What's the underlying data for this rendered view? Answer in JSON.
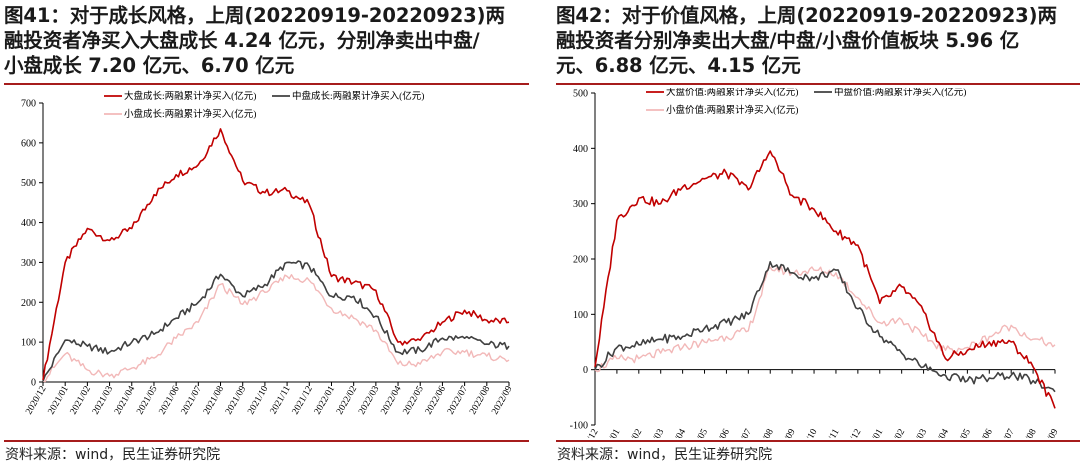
{
  "panels": [
    {
      "title": "图41：对于成长风格，上周(20220919-20220923)两融投资者净买入大盘成长 4.24 亿元，分别净卖出中盘/小盘成长 7.20 亿元、6.70 亿元",
      "title_lines": [
        "图41：对于成长风格，上周(20220919-20220923)两",
        "融投资者净买入大盘成长 4.24 亿元，分别净卖出中盘/",
        "小盘成长 7.20 亿元、6.70 亿元"
      ],
      "source": "资料来源：wind，民生证券研究院"
    },
    {
      "title": "图42：对于价值风格，上周(20220919-20220923)两融投资者分别净卖出大盘/中盘/小盘价值板块 5.96 亿元、6.88 亿元、4.15 亿元",
      "title_lines": [
        "图42：对于价值风格，上周(20220919-20220923)两",
        "融投资者分别净卖出大盘/中盘/小盘价值板块  5.96  亿",
        "元、6.88 亿元、4.15 亿元"
      ],
      "source": "资料来源：wind，民生证券研究院"
    }
  ],
  "colors": {
    "large": "#c00000",
    "mid": "#404040",
    "small": "#f2b8b8",
    "rule": "#a61c1c"
  },
  "chart_data": [
    {
      "type": "line",
      "title": "",
      "xlabel": "",
      "ylabel": "",
      "ylim": [
        0,
        700
      ],
      "yticks": [
        0,
        100,
        200,
        300,
        400,
        500,
        600,
        700
      ],
      "xticks": [
        "2020/12",
        "2021/01",
        "2021/02",
        "2021/03",
        "2021/04",
        "2021/05",
        "2021/06",
        "2021/07",
        "2021/08",
        "2021/09",
        "2021/10",
        "2021/11",
        "2021/12",
        "2022/01",
        "2022/02",
        "2022/03",
        "2022/04",
        "2022/05",
        "2022/06",
        "2022/07",
        "2022/08",
        "2022/09"
      ],
      "x": [
        "2020/12",
        "2021/01",
        "2021/02",
        "2021/03",
        "2021/04",
        "2021/05",
        "2021/06",
        "2021/07",
        "2021/08",
        "2021/09",
        "2021/10",
        "2021/11",
        "2021/12",
        "2022/01",
        "2022/02",
        "2022/03",
        "2022/04",
        "2022/05",
        "2022/06",
        "2022/07",
        "2022/08",
        "2022/09"
      ],
      "legend": "top",
      "grid": false,
      "series": [
        {
          "name": "大盘成长:两融累计净买入(亿元)",
          "values": [
            5,
            300,
            385,
            355,
            385,
            470,
            520,
            545,
            635,
            505,
            475,
            480,
            445,
            265,
            250,
            230,
            100,
            105,
            150,
            180,
            155,
            150
          ]
        },
        {
          "name": "中盘成长:两融累计净买入(亿元)",
          "values": [
            2,
            105,
            90,
            75,
            100,
            120,
            160,
            200,
            270,
            215,
            245,
            300,
            290,
            215,
            215,
            165,
            75,
            80,
            110,
            110,
            95,
            90
          ]
        },
        {
          "name": "小盘成长:两融累计净买入(亿元)",
          "values": [
            2,
            70,
            30,
            15,
            35,
            60,
            110,
            150,
            245,
            195,
            225,
            265,
            255,
            185,
            160,
            130,
            45,
            45,
            75,
            75,
            65,
            55
          ]
        }
      ]
    },
    {
      "type": "line",
      "title": "",
      "xlabel": "",
      "ylabel": "",
      "ylim": [
        -100,
        500
      ],
      "yticks": [
        -100,
        0,
        100,
        200,
        300,
        400,
        500
      ],
      "xticks": [
        "2020/12",
        "2021/01",
        "2021/02",
        "2021/03",
        "2021/04",
        "2021/05",
        "2021/06",
        "2021/07",
        "2021/08",
        "2021/09",
        "2021/10",
        "2021/11",
        "2021/12",
        "2022/01",
        "2022/02",
        "2022/03",
        "2022/04",
        "2022/05",
        "2022/06",
        "2022/07",
        "2022/08",
        "2022/09"
      ],
      "x": [
        "2020/12",
        "2021/01",
        "2021/02",
        "2021/03",
        "2021/04",
        "2021/05",
        "2021/06",
        "2021/07",
        "2021/08",
        "2021/09",
        "2021/10",
        "2021/11",
        "2021/12",
        "2022/01",
        "2022/02",
        "2022/03",
        "2022/04",
        "2022/05",
        "2022/06",
        "2022/07",
        "2022/08",
        "2022/09"
      ],
      "legend": "top",
      "grid": false,
      "series": [
        {
          "name": "大盘价值:两融累计净买入(亿元)",
          "values": [
            5,
            270,
            310,
            300,
            330,
            345,
            355,
            325,
            395,
            315,
            290,
            250,
            225,
            120,
            150,
            105,
            20,
            35,
            50,
            50,
            5,
            -70
          ]
        },
        {
          "name": "中盘价值:两融累计净买入(亿元)",
          "values": [
            0,
            40,
            45,
            55,
            60,
            75,
            85,
            100,
            195,
            175,
            165,
            180,
            110,
            60,
            30,
            5,
            -10,
            -20,
            -15,
            -10,
            -20,
            -40
          ]
        },
        {
          "name": "小盘价值:两融累计净买入(亿元)",
          "values": [
            0,
            20,
            20,
            30,
            40,
            50,
            60,
            70,
            185,
            175,
            180,
            175,
            130,
            85,
            90,
            60,
            35,
            40,
            60,
            80,
            55,
            45
          ]
        }
      ]
    }
  ]
}
